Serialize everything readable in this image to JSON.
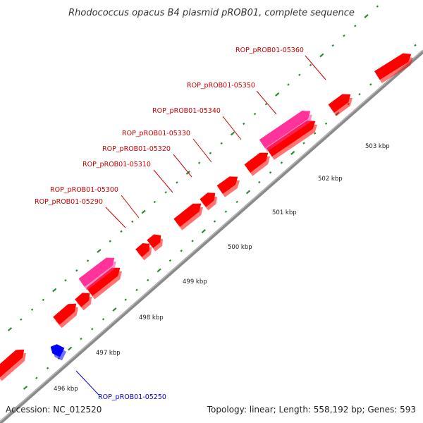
{
  "title": "Rhodococcus opacus B4 plasmid pROB01, complete sequence",
  "footer": {
    "accession": "Accession: NC_012520",
    "summary": "Topology: linear; Length: 558,192 bp; Genes: 593"
  },
  "colors": {
    "background": "#ffffff",
    "backbone": "#8a8a8a",
    "forward_gene": "#ff0000",
    "reverse_gene": "#0000ff",
    "highlight_gene": "#ff3399",
    "tick_mark": "#2e8b2e",
    "label_red": "#cc0000",
    "label_blue": "#0000cc"
  },
  "scale_ticks": [
    "496 kbp",
    "497 kbp",
    "498 kbp",
    "499 kbp",
    "500 kbp",
    "501 kbp",
    "502 kbp",
    "503 kbp"
  ],
  "gene_labels": [
    {
      "name": "ROP_pROB01-05250",
      "strand": "reverse"
    },
    {
      "name": "ROP_pROB01-05290",
      "strand": "forward"
    },
    {
      "name": "ROP_pROB01-05300",
      "strand": "forward"
    },
    {
      "name": "ROP_pROB01-05310",
      "strand": "forward"
    },
    {
      "name": "ROP_pROB01-05320",
      "strand": "forward"
    },
    {
      "name": "ROP_pROB01-05330",
      "strand": "forward"
    },
    {
      "name": "ROP_pROB01-05340",
      "strand": "forward"
    },
    {
      "name": "ROP_pROB01-05350",
      "strand": "forward"
    },
    {
      "name": "ROP_pROB01-05360",
      "strand": "forward"
    }
  ]
}
